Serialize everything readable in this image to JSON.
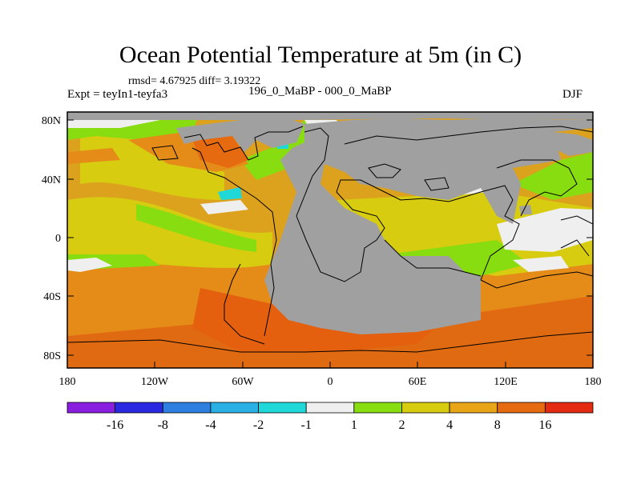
{
  "title": "Ocean Potential Temperature at 5m (in C)",
  "stats": "rmsd= 4.67925  diff= 3.19322",
  "expt": "Expt = teyIn1-teyfa3",
  "subtitle": "196_0_MaBP - 000_0_MaBP",
  "season": "DJF",
  "axes": {
    "x_ticks": [
      "180",
      "120W",
      "60W",
      "0",
      "60E",
      "120E",
      "180"
    ],
    "y_ticks": [
      "80N",
      "40N",
      "0",
      "40S",
      "80S"
    ]
  },
  "colorbar": {
    "colors": [
      "#8a1ee0",
      "#2a28e0",
      "#2f7fe0",
      "#2ab0e4",
      "#20d8d8",
      "#efefef",
      "#88dd10",
      "#d8cc10",
      "#e8a518",
      "#e56a10",
      "#e42a10"
    ],
    "labels": [
      "-16",
      "-8",
      "-4",
      "-2",
      "-1",
      "1",
      "2",
      "4",
      "8",
      "16"
    ]
  },
  "colors": {
    "land": "#a0a0a0",
    "warm_bg": "#dca21e",
    "coast": "#000000"
  }
}
